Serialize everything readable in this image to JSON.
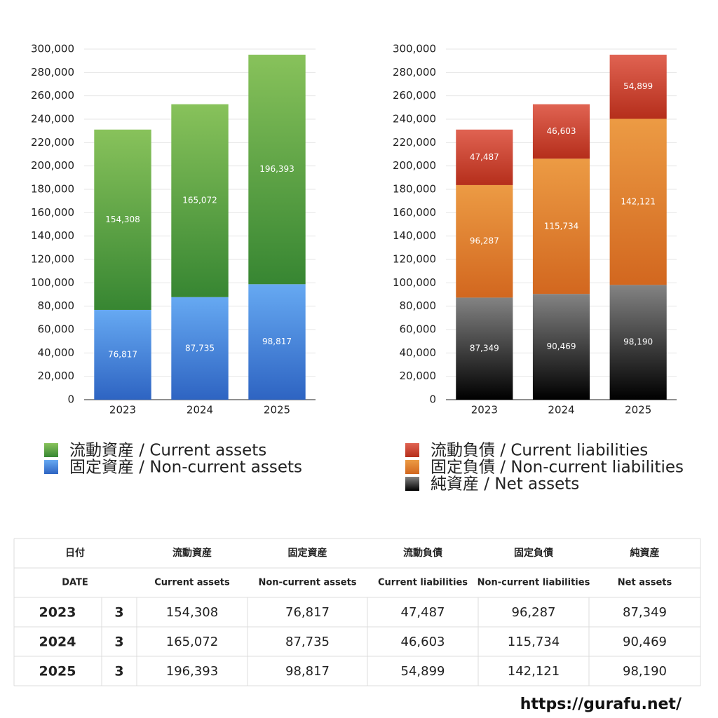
{
  "chart_data": [
    {
      "type": "stacked-bar",
      "categories": [
        "2023",
        "2024",
        "2025"
      ],
      "series": [
        {
          "name": "固定資産 / Non-current assets",
          "gradient": [
            "#66a9f2",
            "#2e64c2"
          ],
          "values": [
            76817,
            87735,
            98817
          ],
          "value_labels": [
            "76,817",
            "87,735",
            "98,817"
          ]
        },
        {
          "name": "流動資産 / Current assets",
          "gradient": [
            "#88c25b",
            "#378632"
          ],
          "values": [
            154308,
            165072,
            196393
          ],
          "value_labels": [
            "154,308",
            "165,072",
            "196,393"
          ]
        }
      ],
      "ylim": [
        0,
        300000
      ],
      "yticks": [
        0,
        {
          "value": 20000,
          "label": "20,000"
        },
        {
          "value": 40000,
          "label": "40,000"
        },
        {
          "value": 60000,
          "label": "60,000"
        },
        {
          "value": 80000,
          "label": "80,000"
        },
        {
          "value": 100000,
          "label": "100,000"
        },
        {
          "value": 120000,
          "label": "120,000"
        },
        {
          "value": 140000,
          "label": "140,000"
        },
        {
          "value": 160000,
          "label": "160,000"
        },
        {
          "value": 180000,
          "label": "180,000"
        },
        {
          "value": 200000,
          "label": "200,000"
        },
        {
          "value": 220000,
          "label": "220,000"
        },
        {
          "value": 240000,
          "label": "240,000"
        },
        {
          "value": 260000,
          "label": "260,000"
        },
        {
          "value": 280000,
          "label": "280,000"
        },
        {
          "value": 300000,
          "label": "300,000"
        }
      ],
      "grid": true
    },
    {
      "type": "stacked-bar",
      "categories": [
        "2023",
        "2024",
        "2025"
      ],
      "series": [
        {
          "name": "純資産 / Net assets",
          "gradient": [
            "#838383",
            "#000000"
          ],
          "values": [
            87349,
            90469,
            98190
          ],
          "value_labels": [
            "87,349",
            "90,469",
            "98,190"
          ]
        },
        {
          "name": "固定負債 / Non-current liabilities",
          "gradient": [
            "#ec9b44",
            "#d2671f"
          ],
          "values": [
            96287,
            115734,
            142121
          ],
          "value_labels": [
            "96,287",
            "115,734",
            "142,121"
          ]
        },
        {
          "name": "流動負債 / Current liabilities",
          "gradient": [
            "#e06352",
            "#b52e1b"
          ],
          "values": [
            47487,
            46603,
            54899
          ],
          "value_labels": [
            "47,487",
            "46,603",
            "54,899"
          ]
        }
      ],
      "ylim": [
        0,
        300000
      ],
      "yticks": [
        0,
        {
          "value": 20000,
          "label": "20,000"
        },
        {
          "value": 40000,
          "label": "40,000"
        },
        {
          "value": 60000,
          "label": "60,000"
        },
        {
          "value": 80000,
          "label": "80,000"
        },
        {
          "value": 100000,
          "label": "100,000"
        },
        {
          "value": 120000,
          "label": "120,000"
        },
        {
          "value": 140000,
          "label": "140,000"
        },
        {
          "value": 160000,
          "label": "160,000"
        },
        {
          "value": 180000,
          "label": "180,000"
        },
        {
          "value": 200000,
          "label": "200,000"
        },
        {
          "value": 220000,
          "label": "220,000"
        },
        {
          "value": 240000,
          "label": "240,000"
        },
        {
          "value": 260000,
          "label": "260,000"
        },
        {
          "value": 280000,
          "label": "280,000"
        },
        {
          "value": 300000,
          "label": "300,000"
        }
      ],
      "grid": true
    }
  ],
  "table": {
    "header": [
      [
        "日付",
        "流動資産",
        "固定資産",
        "流動負債",
        "固定負債",
        "純資産"
      ],
      [
        "DATE",
        "Current assets",
        "Non-current assets",
        "Current liabilities",
        "Non-current liabilities",
        "Net assets"
      ]
    ],
    "rows": [
      [
        "2023",
        "3",
        "154,308",
        "76,817",
        "47,487",
        "96,287",
        "87,349"
      ],
      [
        "2024",
        "3",
        "165,072",
        "87,735",
        "46,603",
        "115,734",
        "90,469"
      ],
      [
        "2025",
        "3",
        "196,393",
        "98,817",
        "54,899",
        "142,121",
        "98,190"
      ]
    ]
  },
  "footer": "https://gurafu.net/"
}
